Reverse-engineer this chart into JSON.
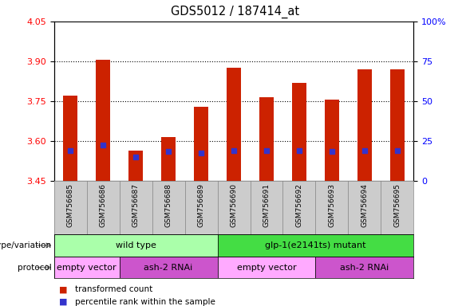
{
  "title": "GDS5012 / 187414_at",
  "samples": [
    "GSM756685",
    "GSM756686",
    "GSM756687",
    "GSM756688",
    "GSM756689",
    "GSM756690",
    "GSM756691",
    "GSM756692",
    "GSM756693",
    "GSM756694",
    "GSM756695"
  ],
  "bar_values": [
    3.77,
    3.905,
    3.565,
    3.615,
    3.73,
    3.875,
    3.765,
    3.82,
    3.755,
    3.87,
    3.87
  ],
  "blue_values": [
    3.565,
    3.585,
    3.54,
    3.56,
    3.555,
    3.565,
    3.565,
    3.565,
    3.56,
    3.565,
    3.565
  ],
  "y_min": 3.45,
  "y_max": 4.05,
  "y_ticks_left": [
    3.45,
    3.6,
    3.75,
    3.9,
    4.05
  ],
  "y_ticks_right_labels": [
    "0",
    "25",
    "50",
    "75",
    "100%"
  ],
  "bar_color": "#cc2200",
  "blue_color": "#3333cc",
  "plot_bg": "#ffffff",
  "xlabel_bg": "#cccccc",
  "genotype_groups": [
    {
      "label": "wild type",
      "start": 0,
      "end": 5,
      "color": "#aaffaa"
    },
    {
      "label": "glp-1(e2141ts) mutant",
      "start": 5,
      "end": 11,
      "color": "#44dd44"
    }
  ],
  "protocol_groups": [
    {
      "label": "empty vector",
      "start": 0,
      "end": 2,
      "color": "#ffaaff"
    },
    {
      "label": "ash-2 RNAi",
      "start": 2,
      "end": 5,
      "color": "#cc55cc"
    },
    {
      "label": "empty vector",
      "start": 5,
      "end": 8,
      "color": "#ffaaff"
    },
    {
      "label": "ash-2 RNAi",
      "start": 8,
      "end": 11,
      "color": "#cc55cc"
    }
  ],
  "legend_red_label": "transformed count",
  "legend_blue_label": "percentile rank within the sample",
  "genotype_label": "genotype/variation",
  "protocol_label": "protocol",
  "bar_width": 0.45,
  "blue_marker_size": 4
}
